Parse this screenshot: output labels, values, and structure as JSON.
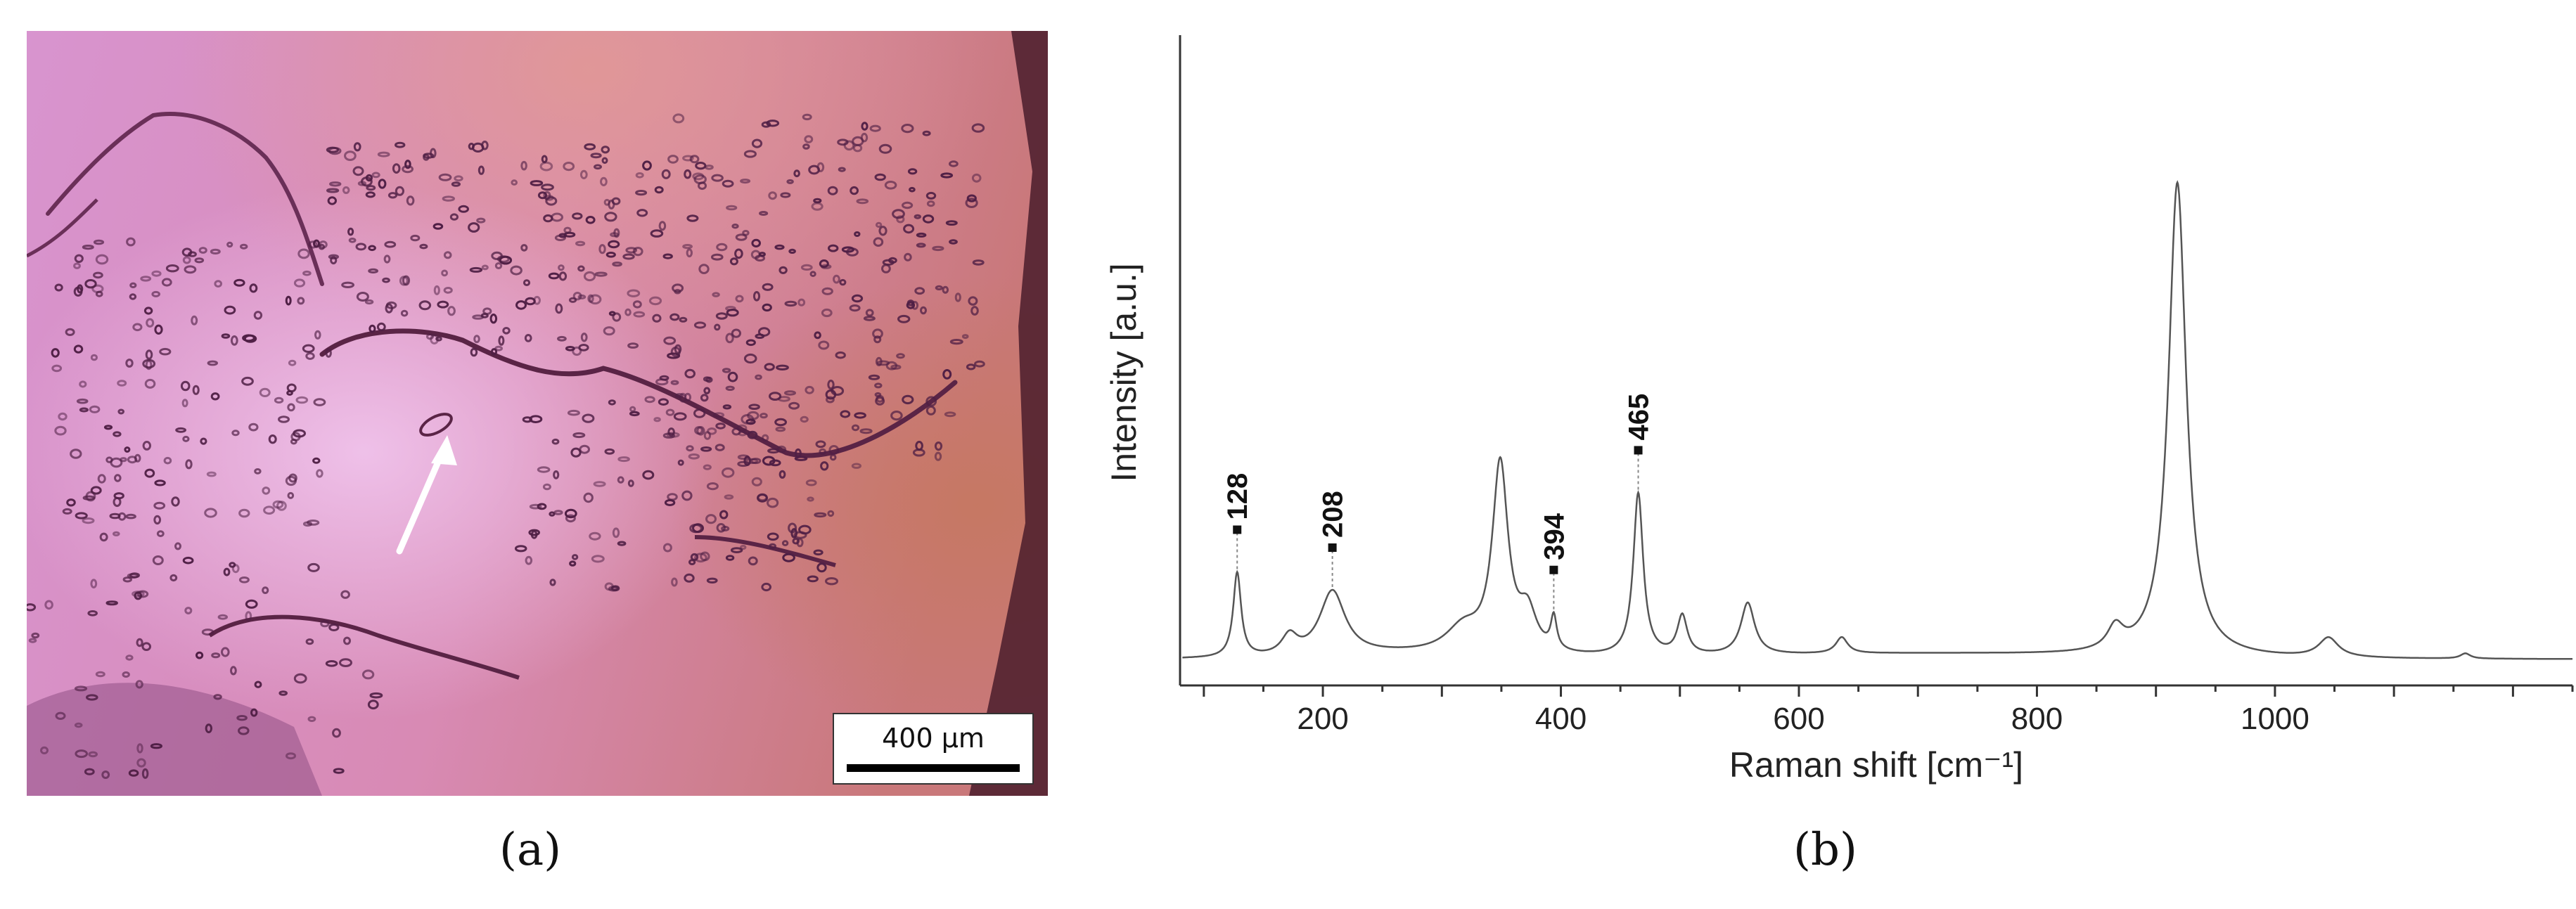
{
  "panel_a": {
    "caption": "(a)",
    "scale_bar_label": "400 µm",
    "colors": {
      "tissue_pink": "#d58ac8",
      "tissue_dark": "#6a2f58",
      "orange_right": "#c88070"
    }
  },
  "panel_b": {
    "caption": "(b)"
  },
  "chart_data": {
    "type": "line",
    "xlabel": "Raman shift [cm⁻¹]",
    "ylabel": "Intensity [a.u.]",
    "xlim": [
      80,
      1250
    ],
    "ylim": [
      0,
      100
    ],
    "xticks": [
      200,
      400,
      600,
      800,
      1000
    ],
    "grid": false,
    "line_color": "#555555",
    "series": [
      {
        "peaks": [
          {
            "x": 128,
            "height": 13,
            "width": 4
          },
          {
            "x": 172,
            "height": 3,
            "width": 8
          },
          {
            "x": 208,
            "height": 10,
            "width": 13
          },
          {
            "x": 318,
            "height": 4,
            "width": 18
          },
          {
            "x": 349,
            "height": 29,
            "width": 8
          },
          {
            "x": 372,
            "height": 6,
            "width": 9
          },
          {
            "x": 394,
            "height": 5,
            "width": 3
          },
          {
            "x": 465,
            "height": 25,
            "width": 5
          },
          {
            "x": 502,
            "height": 6,
            "width": 5
          },
          {
            "x": 557,
            "height": 8,
            "width": 7
          },
          {
            "x": 636,
            "height": 2.5,
            "width": 6
          },
          {
            "x": 866,
            "height": 3.5,
            "width": 8
          },
          {
            "x": 918,
            "height": 73,
            "width": 9
          },
          {
            "x": 1045,
            "height": 3,
            "width": 10
          },
          {
            "x": 1160,
            "height": 0.8,
            "width": 5
          }
        ],
        "baseline": 4
      }
    ],
    "annotations": [
      {
        "label": "128",
        "x": 128
      },
      {
        "label": "208",
        "x": 208
      },
      {
        "label": "394",
        "x": 394
      },
      {
        "label": "465",
        "x": 465
      }
    ]
  }
}
